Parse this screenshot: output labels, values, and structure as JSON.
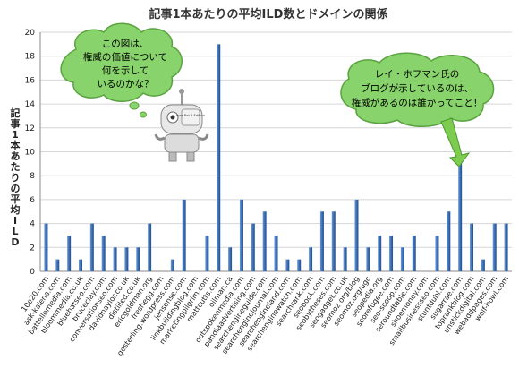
{
  "chart_data": {
    "type": "bar",
    "title": "記事1本あたりの平均ILD数とドメインの関係",
    "ylabel": "記事1本あたりの平均ILD",
    "xlabel": "",
    "ylim": [
      0,
      20
    ],
    "yticks": [
      "0",
      "2",
      "4",
      "6",
      "8",
      "10",
      "12",
      "14",
      "16",
      "18",
      "20"
    ],
    "grid": true,
    "bar_color": "#3a6fb5",
    "categories": [
      "10e20.com",
      "ask-kalena.com",
      "battellemedia.com",
      "bloommedia.co.uk",
      "bluehatseo.com",
      "bruceclay.com",
      "conversationseo.com",
      "davidnaylor.co.uk",
      "distilled.co.uk",
      "ericgoldman.org",
      "freshegg.com",
      "gesterling.wordpress.com",
      "jensense.com",
      "linkbuildingblog.com",
      "marketingpilgrim.com",
      "mattcutts.com",
      "oilman.ca",
      "outspokenmedia.com",
      "pandiaadvertising.com",
      "searchengineguide.com",
      "searchenginejournal.com",
      "searchengineland.com",
      "searchenginewatch.com",
      "searchrank.com",
      "seobook.com",
      "seobytheses.com",
      "seogadget.co.uk",
      "seomoz.org/blog",
      "seomoz.org/ugc",
      "seopedia.org",
      "seorefugee.com",
      "seo-scoop.com",
      "seroundtable.com",
      "shoemoney.com",
      "smallbusinessseo.com",
      "stuntdubl.com",
      "sugarrae.com",
      "toprankblog.com",
      "unstickdigital.com",
      "webaddpages.com",
      "wolf-howl.com"
    ],
    "values": [
      4,
      1,
      3,
      1,
      4,
      3,
      2,
      2,
      2,
      4,
      0,
      1,
      6,
      0,
      3,
      19,
      2,
      6,
      4,
      5,
      3,
      1,
      1,
      2,
      5,
      5,
      2,
      6,
      2,
      3,
      3,
      2,
      3,
      0,
      3,
      5,
      9,
      4,
      1,
      4,
      4
    ]
  },
  "callout_left": {
    "lines": [
      "この図は、",
      "権威の価値について",
      "何を示して",
      "いるのかな？"
    ],
    "fill": "#88d36b"
  },
  "callout_right": {
    "lines": [
      "レイ・ホフマン氏の",
      "ブログが示しているのは、",
      "権威があるのは誰かってこと！"
    ],
    "fill": "#88d36b"
  },
  "robot": {
    "badge": "moz Bot 5 Edition"
  },
  "arrow_color": "#7dcc50"
}
